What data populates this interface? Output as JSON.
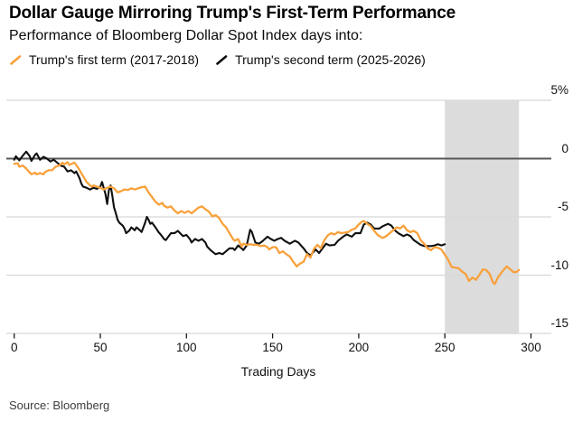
{
  "header": {
    "title": "Dollar Gauge Mirroring Trump's First-Term Performance",
    "subtitle": "Performance of Bloomberg Dollar Spot Index days into:"
  },
  "legend": [
    {
      "label": "Trump's first term (2017-2018)",
      "color": "#F8A13C"
    },
    {
      "label": "Trump's second term (2025-2026)",
      "color": "#0f0f0f"
    }
  ],
  "source": "Source: Bloomberg",
  "chart_data": {
    "type": "line",
    "title": "Dollar Gauge Mirroring Trump's First-Term Performance",
    "subtitle": "Performance of Bloomberg Dollar Spot Index days into:",
    "xlabel": "Trading Days",
    "ylabel": "",
    "xlim": [
      0,
      312
    ],
    "ylim": [
      -15,
      5
    ],
    "grid": "horizontal",
    "legend_position": "top",
    "x_ticks": [
      0,
      50,
      100,
      150,
      200,
      250,
      300
    ],
    "y_ticks": [
      {
        "label": "5%",
        "value": 5
      },
      {
        "label": "0",
        "value": 0
      },
      {
        "label": "-5",
        "value": -5
      },
      {
        "label": "-10",
        "value": -10
      },
      {
        "label": "-15",
        "value": -15
      }
    ],
    "zero_line": {
      "value": 0,
      "color": "#58585a"
    },
    "shaded_region": {
      "x_start": 250,
      "x_end": 293,
      "color": "#dcdcdc"
    },
    "series": [
      {
        "name": "Trump's second term (2025-2026)",
        "color": "#0f0f0f",
        "points": [
          [
            0,
            -0.1
          ],
          [
            1,
            0.2
          ],
          [
            3,
            -0.15
          ],
          [
            5,
            0.25
          ],
          [
            7,
            0.6
          ],
          [
            9,
            0.2
          ],
          [
            10,
            -0.2
          ],
          [
            12,
            0.3
          ],
          [
            13,
            0.45
          ],
          [
            15,
            -0.1
          ],
          [
            17,
            0.15
          ],
          [
            19,
            0.0
          ],
          [
            21,
            -0.25
          ],
          [
            23,
            -0.1
          ],
          [
            25,
            -0.35
          ],
          [
            27,
            -0.6
          ],
          [
            29,
            -0.7
          ],
          [
            31,
            -1.1
          ],
          [
            33,
            -1.0
          ],
          [
            35,
            -1.25
          ],
          [
            36,
            -1.1
          ],
          [
            38,
            -1.7
          ],
          [
            39,
            -2.15
          ],
          [
            40,
            -2.4
          ],
          [
            42,
            -2.5
          ],
          [
            44,
            -2.65
          ],
          [
            46,
            -2.5
          ],
          [
            48,
            -2.6
          ],
          [
            50,
            -2.4
          ],
          [
            51,
            -2.0
          ],
          [
            53,
            -3.05
          ],
          [
            54,
            -3.9
          ],
          [
            55,
            -2.7
          ],
          [
            56,
            -2.3
          ],
          [
            57,
            -3.2
          ],
          [
            58,
            -4.2
          ],
          [
            59,
            -4.7
          ],
          [
            60,
            -5.25
          ],
          [
            61,
            -5.5
          ],
          [
            63,
            -5.75
          ],
          [
            64,
            -6.0
          ],
          [
            65,
            -6.4
          ],
          [
            67,
            -6.15
          ],
          [
            68,
            -5.9
          ],
          [
            70,
            -6.15
          ],
          [
            71,
            -5.9
          ],
          [
            73,
            -6.15
          ],
          [
            74,
            -6.3
          ],
          [
            76,
            -5.5
          ],
          [
            77,
            -5.0
          ],
          [
            78,
            -5.25
          ],
          [
            79,
            -5.6
          ],
          [
            80,
            -5.5
          ],
          [
            82,
            -5.9
          ],
          [
            84,
            -6.35
          ],
          [
            85,
            -6.5
          ],
          [
            87,
            -6.9
          ],
          [
            88,
            -7.0
          ],
          [
            90,
            -6.6
          ],
          [
            91,
            -6.4
          ],
          [
            93,
            -6.4
          ],
          [
            95,
            -6.2
          ],
          [
            97,
            -6.5
          ],
          [
            98,
            -6.65
          ],
          [
            100,
            -6.55
          ],
          [
            102,
            -6.9
          ],
          [
            103,
            -7.2
          ],
          [
            105,
            -6.9
          ],
          [
            107,
            -7.05
          ],
          [
            109,
            -6.9
          ],
          [
            111,
            -7.2
          ],
          [
            112,
            -7.55
          ],
          [
            114,
            -7.85
          ],
          [
            116,
            -8.1
          ],
          [
            117,
            -8.2
          ],
          [
            119,
            -8.1
          ],
          [
            121,
            -8.2
          ],
          [
            123,
            -7.95
          ],
          [
            125,
            -7.7
          ],
          [
            127,
            -7.7
          ],
          [
            128,
            -7.85
          ],
          [
            130,
            -7.45
          ],
          [
            132,
            -7.7
          ],
          [
            133,
            -7.85
          ],
          [
            135,
            -7.45
          ],
          [
            137,
            -6.1
          ],
          [
            138,
            -6.3
          ],
          [
            140,
            -7.2
          ],
          [
            142,
            -7.3
          ],
          [
            144,
            -7.1
          ],
          [
            147,
            -6.7
          ],
          [
            149,
            -6.9
          ],
          [
            151,
            -7.05
          ],
          [
            153,
            -6.9
          ],
          [
            155,
            -6.8
          ],
          [
            157,
            -7.05
          ],
          [
            160,
            -7.3
          ],
          [
            163,
            -7.05
          ],
          [
            165,
            -7.2
          ],
          [
            168,
            -7.7
          ],
          [
            170,
            -8.1
          ],
          [
            172,
            -8.3
          ],
          [
            175,
            -7.8
          ],
          [
            177,
            -8.1
          ],
          [
            179,
            -7.7
          ],
          [
            181,
            -7.3
          ],
          [
            183,
            -7.45
          ],
          [
            186,
            -7.4
          ],
          [
            188,
            -7.05
          ],
          [
            191,
            -6.7
          ],
          [
            193,
            -6.5
          ],
          [
            196,
            -6.7
          ],
          [
            198,
            -6.4
          ],
          [
            201,
            -6.4
          ],
          [
            203,
            -5.65
          ],
          [
            205,
            -5.5
          ],
          [
            207,
            -5.65
          ],
          [
            209,
            -6.0
          ],
          [
            212,
            -6.0
          ],
          [
            214,
            -5.8
          ],
          [
            217,
            -5.6
          ],
          [
            219,
            -5.75
          ],
          [
            221,
            -6.15
          ],
          [
            223,
            -6.4
          ],
          [
            226,
            -6.65
          ],
          [
            228,
            -6.5
          ],
          [
            230,
            -6.65
          ],
          [
            232,
            -7.0
          ],
          [
            234,
            -7.2
          ],
          [
            236,
            -7.4
          ],
          [
            238,
            -7.5
          ],
          [
            240,
            -7.5
          ],
          [
            242,
            -7.5
          ],
          [
            244,
            -7.45
          ],
          [
            246,
            -7.35
          ],
          [
            248,
            -7.45
          ],
          [
            250,
            -7.35
          ]
        ]
      },
      {
        "name": "Trump's first term (2017-2018)",
        "color": "#F8A13C",
        "points": [
          [
            0,
            -0.45
          ],
          [
            2,
            -0.4
          ],
          [
            3,
            -0.7
          ],
          [
            5,
            -0.6
          ],
          [
            7,
            -0.85
          ],
          [
            9,
            -1.2
          ],
          [
            10,
            -1.35
          ],
          [
            12,
            -1.2
          ],
          [
            13,
            -1.35
          ],
          [
            15,
            -1.25
          ],
          [
            17,
            -1.35
          ],
          [
            18,
            -1.15
          ],
          [
            20,
            -1.0
          ],
          [
            22,
            -1.0
          ],
          [
            24,
            -0.7
          ],
          [
            26,
            -0.6
          ],
          [
            28,
            -0.35
          ],
          [
            29,
            -0.5
          ],
          [
            31,
            -0.3
          ],
          [
            32,
            -0.55
          ],
          [
            34,
            -0.4
          ],
          [
            35,
            -0.35
          ],
          [
            37,
            -0.75
          ],
          [
            38,
            -1.0
          ],
          [
            40,
            -1.5
          ],
          [
            42,
            -2.0
          ],
          [
            44,
            -2.3
          ],
          [
            45,
            -2.4
          ],
          [
            46,
            -2.3
          ],
          [
            48,
            -2.4
          ],
          [
            50,
            -2.5
          ],
          [
            52,
            -2.65
          ],
          [
            54,
            -2.5
          ],
          [
            56,
            -2.4
          ],
          [
            58,
            -2.55
          ],
          [
            60,
            -2.9
          ],
          [
            62,
            -2.8
          ],
          [
            64,
            -2.65
          ],
          [
            66,
            -2.7
          ],
          [
            68,
            -2.55
          ],
          [
            70,
            -2.65
          ],
          [
            72,
            -2.55
          ],
          [
            74,
            -2.45
          ],
          [
            76,
            -2.4
          ],
          [
            78,
            -2.9
          ],
          [
            80,
            -3.3
          ],
          [
            82,
            -3.7
          ],
          [
            84,
            -3.95
          ],
          [
            86,
            -3.8
          ],
          [
            87,
            -4.05
          ],
          [
            89,
            -4.2
          ],
          [
            91,
            -4.1
          ],
          [
            93,
            -4.45
          ],
          [
            95,
            -4.7
          ],
          [
            97,
            -4.5
          ],
          [
            99,
            -4.65
          ],
          [
            101,
            -4.5
          ],
          [
            103,
            -4.7
          ],
          [
            105,
            -4.45
          ],
          [
            107,
            -4.2
          ],
          [
            109,
            -4.1
          ],
          [
            111,
            -4.35
          ],
          [
            113,
            -4.55
          ],
          [
            115,
            -4.95
          ],
          [
            117,
            -4.85
          ],
          [
            119,
            -5.1
          ],
          [
            121,
            -5.6
          ],
          [
            123,
            -5.9
          ],
          [
            125,
            -6.4
          ],
          [
            127,
            -6.9
          ],
          [
            128,
            -7.05
          ],
          [
            130,
            -6.9
          ],
          [
            132,
            -7.55
          ],
          [
            133,
            -7.3
          ],
          [
            135,
            -7.4
          ],
          [
            137,
            -7.35
          ],
          [
            139,
            -7.4
          ],
          [
            141,
            -7.4
          ],
          [
            143,
            -7.5
          ],
          [
            145,
            -7.45
          ],
          [
            147,
            -7.6
          ],
          [
            148,
            -7.8
          ],
          [
            150,
            -7.6
          ],
          [
            152,
            -7.6
          ],
          [
            154,
            -8.1
          ],
          [
            156,
            -7.95
          ],
          [
            158,
            -8.2
          ],
          [
            160,
            -8.4
          ],
          [
            162,
            -8.85
          ],
          [
            164,
            -9.25
          ],
          [
            166,
            -9.0
          ],
          [
            168,
            -8.85
          ],
          [
            170,
            -8.2
          ],
          [
            172,
            -8.5
          ],
          [
            174,
            -7.75
          ],
          [
            176,
            -7.4
          ],
          [
            178,
            -7.7
          ],
          [
            180,
            -7.0
          ],
          [
            182,
            -6.6
          ],
          [
            184,
            -6.4
          ],
          [
            186,
            -6.5
          ],
          [
            188,
            -6.3
          ],
          [
            190,
            -6.4
          ],
          [
            192,
            -6.35
          ],
          [
            194,
            -6.3
          ],
          [
            196,
            -6.1
          ],
          [
            198,
            -6.0
          ],
          [
            200,
            -5.65
          ],
          [
            202,
            -5.4
          ],
          [
            203,
            -5.35
          ],
          [
            205,
            -5.6
          ],
          [
            207,
            -5.8
          ],
          [
            209,
            -6.2
          ],
          [
            211,
            -6.55
          ],
          [
            213,
            -6.75
          ],
          [
            214,
            -6.8
          ],
          [
            216,
            -6.65
          ],
          [
            218,
            -6.4
          ],
          [
            220,
            -6.15
          ],
          [
            222,
            -5.9
          ],
          [
            224,
            -6.0
          ],
          [
            226,
            -5.75
          ],
          [
            228,
            -6.15
          ],
          [
            230,
            -6.3
          ],
          [
            232,
            -6.2
          ],
          [
            234,
            -6.4
          ],
          [
            236,
            -7.0
          ],
          [
            238,
            -7.3
          ],
          [
            240,
            -7.7
          ],
          [
            242,
            -7.85
          ],
          [
            244,
            -7.6
          ],
          [
            246,
            -7.65
          ],
          [
            248,
            -7.8
          ],
          [
            250,
            -8.25
          ],
          [
            252,
            -8.7
          ],
          [
            254,
            -9.3
          ],
          [
            256,
            -9.35
          ],
          [
            258,
            -9.4
          ],
          [
            260,
            -9.7
          ],
          [
            262,
            -9.9
          ],
          [
            264,
            -10.5
          ],
          [
            266,
            -10.2
          ],
          [
            268,
            -10.4
          ],
          [
            270,
            -10.0
          ],
          [
            272,
            -9.5
          ],
          [
            274,
            -9.55
          ],
          [
            276,
            -9.9
          ],
          [
            278,
            -10.65
          ],
          [
            279,
            -10.75
          ],
          [
            281,
            -10.15
          ],
          [
            283,
            -9.75
          ],
          [
            285,
            -9.4
          ],
          [
            286,
            -9.25
          ],
          [
            288,
            -9.5
          ],
          [
            290,
            -9.75
          ],
          [
            292,
            -9.7
          ],
          [
            293,
            -9.55
          ]
        ]
      }
    ]
  }
}
